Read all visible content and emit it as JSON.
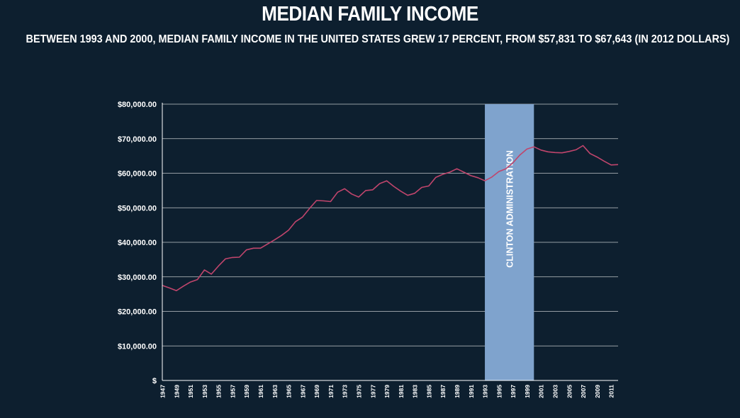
{
  "header": {
    "title": "MEDIAN FAMILY INCOME",
    "subtitle": "BETWEEN 1993 AND 2000, MEDIAN FAMILY INCOME IN THE UNITED STATES GREW 17 PERCENT, FROM $57,831 TO $67,643 (IN 2012 DOLLARS)"
  },
  "colors": {
    "background": "#0d1f2f",
    "line": "#c0456c",
    "band": "#7fa3cd",
    "grid": "#ffffff"
  },
  "chart_data": {
    "type": "line",
    "title": "MEDIAN FAMILY INCOME",
    "xlabel": "",
    "ylabel": "",
    "ylim": [
      0,
      80000
    ],
    "yticks": [
      0,
      10000,
      20000,
      30000,
      40000,
      50000,
      60000,
      70000,
      80000
    ],
    "ytick_labels": [
      "$",
      "$10,000.00",
      "$20,000.00",
      "$30,000.00",
      "$40,000.00",
      "$50,000.00",
      "$60,000.00",
      "$70,000.00",
      "$80,000.00"
    ],
    "xlim": [
      1947,
      2012
    ],
    "xtick_labels": [
      "1947",
      "1949",
      "1951",
      "1953",
      "1955",
      "1957",
      "1959",
      "1961",
      "1963",
      "1965",
      "1967",
      "1969",
      "1971",
      "1973",
      "1975",
      "1977",
      "1979",
      "1981",
      "1983",
      "1985",
      "1987",
      "1989",
      "1991",
      "1993",
      "1995",
      "1997",
      "1999",
      "2001",
      "2003",
      "2005",
      "2007",
      "2009",
      "2011"
    ],
    "grid": true,
    "legend": "none",
    "series": [
      {
        "x": [
          1947,
          1948,
          1949,
          1950,
          1951,
          1952,
          1953,
          1954,
          1955,
          1956,
          1957,
          1958,
          1959,
          1960,
          1961,
          1962,
          1963,
          1964,
          1965,
          1966,
          1967,
          1968,
          1969,
          1970,
          1971,
          1972,
          1973,
          1974,
          1975,
          1976,
          1977,
          1978,
          1979,
          1980,
          1981,
          1982,
          1983,
          1984,
          1985,
          1986,
          1987,
          1988,
          1989,
          1990,
          1991,
          1992,
          1993,
          1994,
          1995,
          1996,
          1997,
          1998,
          1999,
          2000,
          2001,
          2002,
          2003,
          2004,
          2005,
          2006,
          2007,
          2008,
          2009,
          2010,
          2011,
          2012
        ],
        "values": [
          27500,
          26800,
          26000,
          27300,
          28500,
          29200,
          32000,
          30800,
          33100,
          35200,
          35600,
          35700,
          37800,
          38300,
          38300,
          39500,
          40700,
          42000,
          43500,
          46000,
          47300,
          49800,
          52100,
          52000,
          51800,
          54500,
          55500,
          54000,
          53100,
          55000,
          55200,
          57000,
          57800,
          56200,
          54800,
          53600,
          54200,
          55900,
          56300,
          58800,
          59700,
          60300,
          61300,
          60300,
          59300,
          58700,
          57831,
          58900,
          60500,
          61300,
          63000,
          65300,
          67000,
          67643,
          66700,
          66200,
          66000,
          65900,
          66300,
          66800,
          68000,
          65700,
          64700,
          63500,
          62400,
          62500
        ]
      }
    ],
    "annotations": [
      {
        "label": "CLINTON ADMINISTRATION",
        "x_start": 1993,
        "x_end": 2000
      }
    ]
  }
}
